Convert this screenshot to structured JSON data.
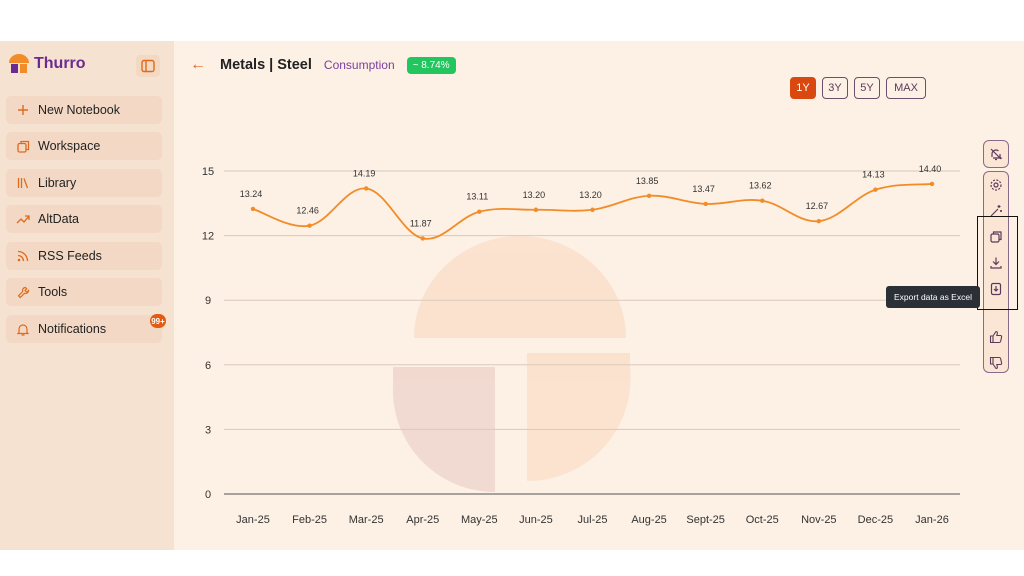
{
  "brand": {
    "name": "Thurro"
  },
  "sidebar": {
    "items": [
      {
        "label": "New Notebook",
        "icon": "plus-icon"
      },
      {
        "label": "Workspace",
        "icon": "copy-icon"
      },
      {
        "label": "Library",
        "icon": "library-icon"
      },
      {
        "label": "AltData",
        "icon": "trend-icon"
      },
      {
        "label": "RSS Feeds",
        "icon": "rss-icon"
      },
      {
        "label": "Tools",
        "icon": "wrench-icon"
      },
      {
        "label": "Notifications",
        "icon": "bell-icon"
      }
    ],
    "notification_badge": "99+"
  },
  "header": {
    "title": "Metals | Steel",
    "subtitle": "Consumption",
    "change_badge": "~ 8.74%"
  },
  "ranges": [
    {
      "label": "1Y",
      "active": true
    },
    {
      "label": "3Y",
      "active": false
    },
    {
      "label": "5Y",
      "active": false
    },
    {
      "label": "MAX",
      "active": false
    }
  ],
  "tooltip": "Export data as Excel",
  "colors": {
    "accent": "#d9480f",
    "line": "#f28c28",
    "positive": "#22c55e",
    "brand": "#6b2c91"
  },
  "chart_data": {
    "type": "line",
    "categories": [
      "Jan-25",
      "Feb-25",
      "Mar-25",
      "Apr-25",
      "May-25",
      "Jun-25",
      "Jul-25",
      "Aug-25",
      "Sept-25",
      "Oct-25",
      "Nov-25",
      "Dec-25",
      "Jan-26"
    ],
    "values": [
      13.24,
      12.46,
      14.19,
      11.87,
      13.11,
      13.2,
      13.2,
      13.85,
      13.47,
      13.62,
      12.67,
      14.13,
      14.4
    ],
    "data_labels": [
      "13.24",
      "12.46",
      "14.19",
      "11.87",
      "13.11",
      "13.20",
      "13.20",
      "13.85",
      "13.47",
      "13.62",
      "12.67",
      "14.13",
      "14.40"
    ],
    "yticks": [
      "0",
      "3",
      "6",
      "9",
      "12",
      "15"
    ],
    "ylim": [
      0,
      15
    ],
    "grid": true,
    "title": "",
    "xlabel": "",
    "ylabel": ""
  }
}
